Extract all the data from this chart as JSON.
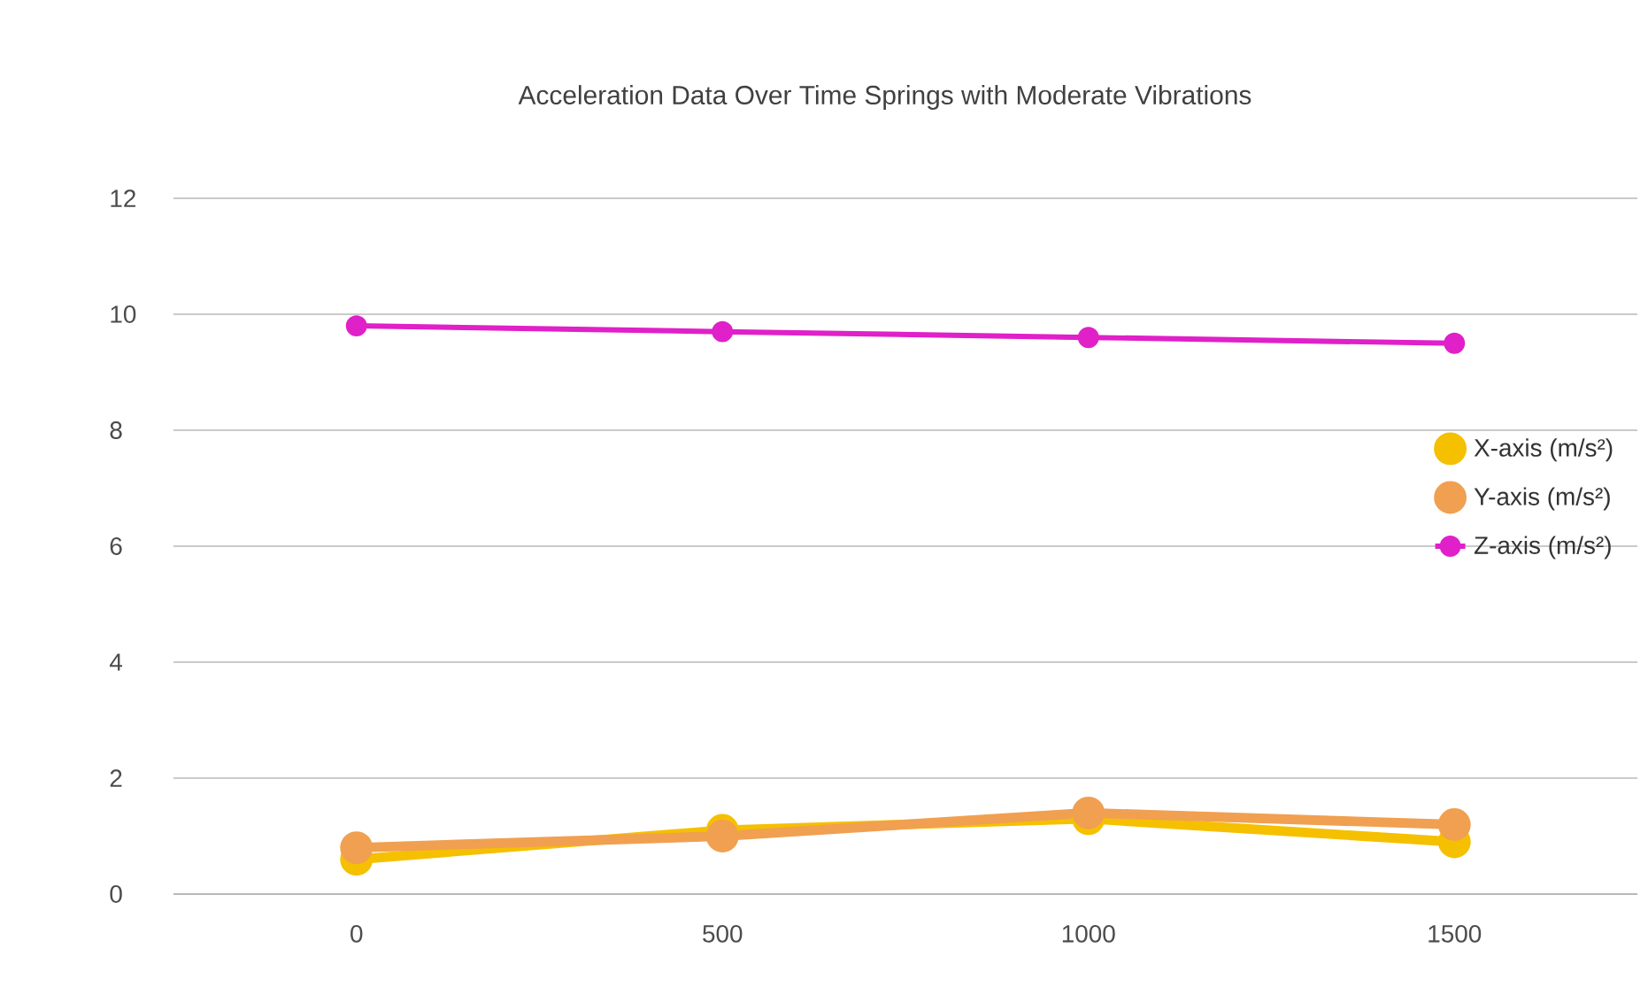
{
  "chart_data": {
    "type": "line",
    "title": "Acceleration Data Over Time Springs with Moderate Vibrations",
    "categories": [
      "0",
      "500",
      "1000",
      "1500"
    ],
    "series": [
      {
        "name": "X-axis (m/s²)",
        "color": "#f5c000",
        "values": [
          0.6,
          1.1,
          1.3,
          0.9
        ]
      },
      {
        "name": "Y-axis (m/s²)",
        "color": "#f0a050",
        "values": [
          0.8,
          1.0,
          1.4,
          1.2
        ]
      },
      {
        "name": "Z-axis (m/s²)",
        "color": "#e020c8",
        "values": [
          9.8,
          9.7,
          9.6,
          9.5
        ]
      }
    ],
    "ylim": [
      0,
      12
    ],
    "yticks": [
      0,
      2,
      4,
      6,
      8,
      10,
      12
    ],
    "grid": "y",
    "legend": "right",
    "marker": "circle",
    "line_style": "solid"
  }
}
